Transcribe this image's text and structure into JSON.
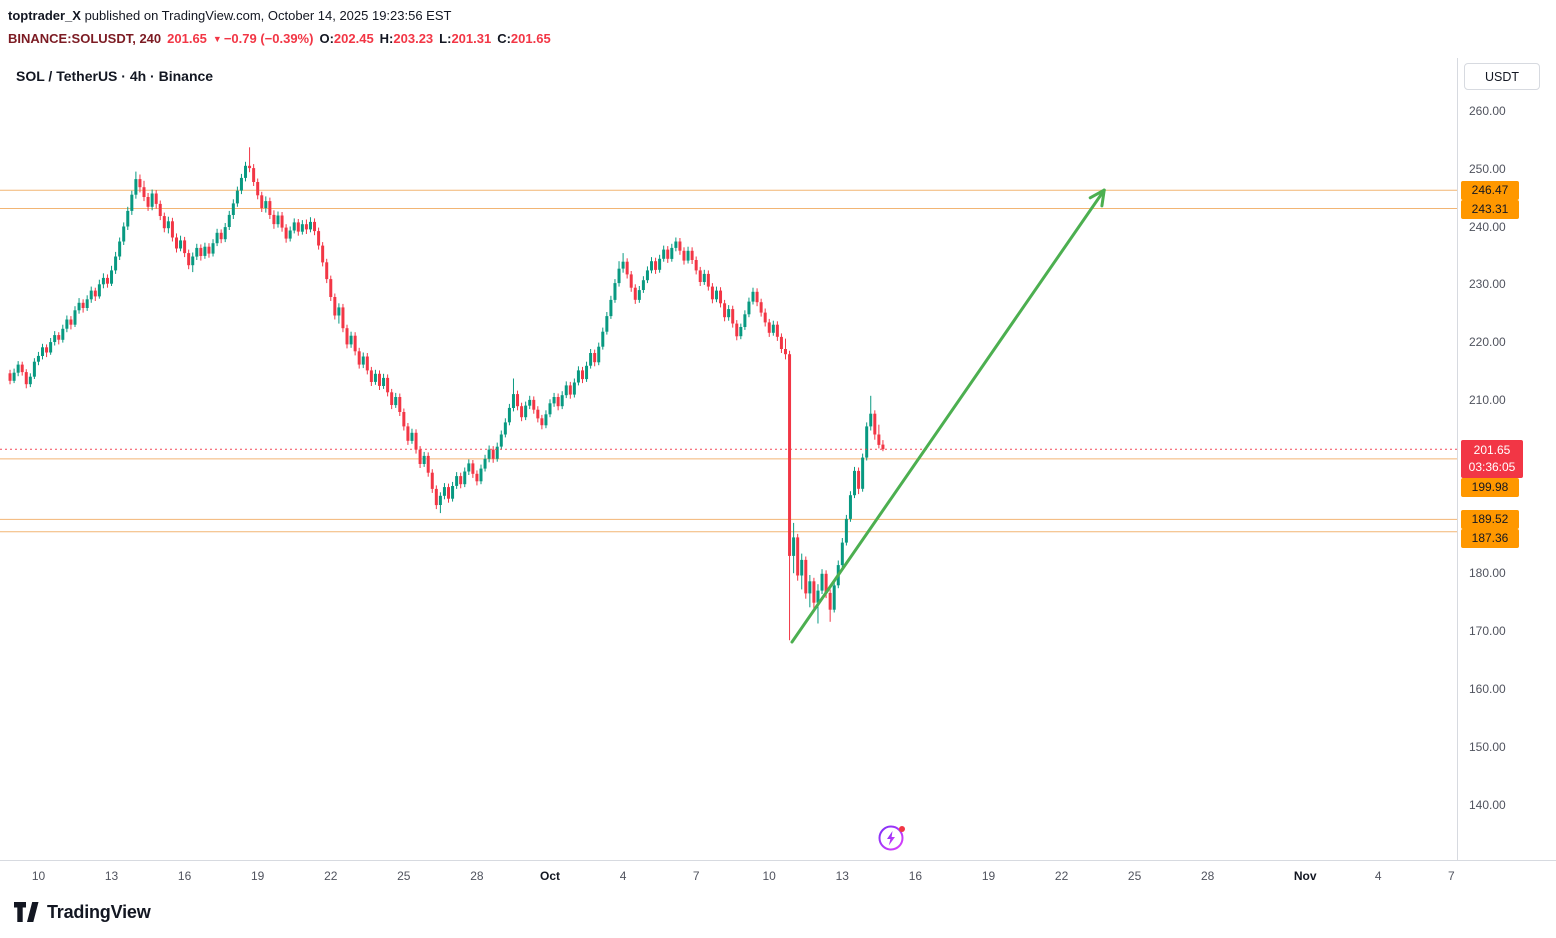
{
  "meta": {
    "attribution": {
      "author": "toptrader_X",
      "rest": " published on TradingView.com, October 14, 2025 19:23:56 EST"
    },
    "symbol_line": {
      "symbol": "BINANCE:SOLUSDT, 240",
      "last": "201.65",
      "down_arrow": "▼",
      "change": "−0.79 (−0.39%)",
      "o_label": "O:",
      "o_value": "202.45",
      "h_label": "H:",
      "h_value": "203.23",
      "l_label": "L:",
      "l_value": "201.31",
      "c_label": "C:",
      "c_value": "201.65"
    }
  },
  "chart": {
    "title": "SOL / TetherUS · 4h · Binance",
    "currency_button": "USDT",
    "watermark_text": "TradingView",
    "colors": {
      "up": "#089981",
      "down": "#f23645",
      "level_line": "#f0a95c",
      "level_badge_bg": "#ff9800",
      "level_badge_fg": "#131722",
      "price_badge_bg": "#f23645",
      "price_badge_fg": "#ffffff",
      "arrow": "#4caf50",
      "symbol_text": "#7c1b23",
      "negative_text": "#f23645"
    }
  },
  "chart_data": {
    "type": "candlestick",
    "symbol": "SOL/USDT",
    "exchange": "Binance",
    "interval": "4h",
    "ohlc_current": {
      "open": 202.45,
      "high": 203.23,
      "low": 201.31,
      "close": 201.65,
      "change": -0.79,
      "change_pct": -0.39
    },
    "price_axis": {
      "ticks": [
        260,
        250,
        240,
        230,
        220,
        210,
        180,
        170,
        160,
        150,
        140
      ],
      "visible_range": [
        130.6,
        269.4
      ],
      "currency": "USDT"
    },
    "time_axis": {
      "labels": [
        {
          "text": "10",
          "slot": 7
        },
        {
          "text": "13",
          "slot": 25
        },
        {
          "text": "16",
          "slot": 43
        },
        {
          "text": "19",
          "slot": 61
        },
        {
          "text": "22",
          "slot": 79
        },
        {
          "text": "25",
          "slot": 97
        },
        {
          "text": "28",
          "slot": 115
        },
        {
          "text": "Oct",
          "slot": 133,
          "month": true
        },
        {
          "text": "4",
          "slot": 151
        },
        {
          "text": "7",
          "slot": 169
        },
        {
          "text": "10",
          "slot": 187
        },
        {
          "text": "13",
          "slot": 205
        },
        {
          "text": "16",
          "slot": 223
        },
        {
          "text": "19",
          "slot": 241
        },
        {
          "text": "22",
          "slot": 259
        },
        {
          "text": "25",
          "slot": 277
        },
        {
          "text": "28",
          "slot": 295
        },
        {
          "text": "Nov",
          "slot": 319,
          "month": true
        },
        {
          "text": "4",
          "slot": 337
        },
        {
          "text": "7",
          "slot": 355
        }
      ]
    },
    "levels": [
      {
        "price": 246.47
      },
      {
        "price": 243.31
      },
      {
        "price": 199.98
      },
      {
        "price": 189.52
      },
      {
        "price": 187.36
      }
    ],
    "current_price": {
      "value": 201.65,
      "countdown": "03:36:05"
    },
    "arrow_drawing": {
      "from": {
        "slot": 192.6,
        "price": 168.3
      },
      "to": {
        "slot": 269.5,
        "price": 246.5
      },
      "color": "#4caf50"
    },
    "candles": [
      [
        214.8,
        215.4,
        212.9,
        213.5
      ],
      [
        213.5,
        215.6,
        213.1,
        214.9
      ],
      [
        214.9,
        216.9,
        214.3,
        216.3
      ],
      [
        216.3,
        216.8,
        214.4,
        215.0
      ],
      [
        215.0,
        215.5,
        212.2,
        212.9
      ],
      [
        212.9,
        214.8,
        212.4,
        214.2
      ],
      [
        214.2,
        217.4,
        213.8,
        216.8
      ],
      [
        216.8,
        218.5,
        216.2,
        217.8
      ],
      [
        217.8,
        219.9,
        217.2,
        219.3
      ],
      [
        219.3,
        219.8,
        217.6,
        218.4
      ],
      [
        218.4,
        220.9,
        218.0,
        220.2
      ],
      [
        220.2,
        222.1,
        219.6,
        221.4
      ],
      [
        221.4,
        221.9,
        219.8,
        220.6
      ],
      [
        220.6,
        223.2,
        220.1,
        222.5
      ],
      [
        222.5,
        224.8,
        221.9,
        224.1
      ],
      [
        224.1,
        224.7,
        222.4,
        223.2
      ],
      [
        223.2,
        226.4,
        222.8,
        225.7
      ],
      [
        225.7,
        227.8,
        225.1,
        227.0
      ],
      [
        227.0,
        227.6,
        225.3,
        226.1
      ],
      [
        226.1,
        228.3,
        225.6,
        227.6
      ],
      [
        227.6,
        229.8,
        227.0,
        229.1
      ],
      [
        229.1,
        229.6,
        227.3,
        228.1
      ],
      [
        228.1,
        231.0,
        227.7,
        230.2
      ],
      [
        230.2,
        232.1,
        229.5,
        231.3
      ],
      [
        231.3,
        231.9,
        229.6,
        230.3
      ],
      [
        230.3,
        233.4,
        229.9,
        232.6
      ],
      [
        232.6,
        235.8,
        232.0,
        235.0
      ],
      [
        235.0,
        238.3,
        234.4,
        237.6
      ],
      [
        237.6,
        240.9,
        237.0,
        240.2
      ],
      [
        240.2,
        243.6,
        239.6,
        242.9
      ],
      [
        242.9,
        246.4,
        242.2,
        245.7
      ],
      [
        245.7,
        249.7,
        245.0,
        248.4
      ],
      [
        248.4,
        249.2,
        246.1,
        247.0
      ],
      [
        247.0,
        248.1,
        244.6,
        245.3
      ],
      [
        245.3,
        246.0,
        242.9,
        243.6
      ],
      [
        243.6,
        246.6,
        243.0,
        245.9
      ],
      [
        245.9,
        246.5,
        243.3,
        244.1
      ],
      [
        244.1,
        244.7,
        241.3,
        242.0
      ],
      [
        242.0,
        242.6,
        239.2,
        239.9
      ],
      [
        239.9,
        241.9,
        239.0,
        241.1
      ],
      [
        241.1,
        241.7,
        237.6,
        238.3
      ],
      [
        238.3,
        239.0,
        235.7,
        236.4
      ],
      [
        236.4,
        238.6,
        235.9,
        237.8
      ],
      [
        237.8,
        238.4,
        234.9,
        235.6
      ],
      [
        235.6,
        236.2,
        232.8,
        233.5
      ],
      [
        233.5,
        235.7,
        232.3,
        235.0
      ],
      [
        235.0,
        237.2,
        234.4,
        236.5
      ],
      [
        236.5,
        237.1,
        234.3,
        235.1
      ],
      [
        235.1,
        237.4,
        234.6,
        236.7
      ],
      [
        236.7,
        237.3,
        234.8,
        235.5
      ],
      [
        235.5,
        238.0,
        235.0,
        237.3
      ],
      [
        237.3,
        239.8,
        236.8,
        239.1
      ],
      [
        239.1,
        239.7,
        237.3,
        238.0
      ],
      [
        238.0,
        240.8,
        237.5,
        240.1
      ],
      [
        240.1,
        242.9,
        239.6,
        242.2
      ],
      [
        242.2,
        244.9,
        241.5,
        244.2
      ],
      [
        244.2,
        247.1,
        243.6,
        246.4
      ],
      [
        246.4,
        249.3,
        245.8,
        248.6
      ],
      [
        248.6,
        251.4,
        248.0,
        250.7
      ],
      [
        250.7,
        253.9,
        249.6,
        250.3
      ],
      [
        250.3,
        251.0,
        247.2,
        247.9
      ],
      [
        247.9,
        248.5,
        244.9,
        245.6
      ],
      [
        245.6,
        246.2,
        242.7,
        243.4
      ],
      [
        243.4,
        245.4,
        242.6,
        244.6
      ],
      [
        244.6,
        245.2,
        241.5,
        242.2
      ],
      [
        242.2,
        243.0,
        239.8,
        240.6
      ],
      [
        240.6,
        242.8,
        240.0,
        242.1
      ],
      [
        242.1,
        242.7,
        239.3,
        240.0
      ],
      [
        240.0,
        240.6,
        237.4,
        238.1
      ],
      [
        238.1,
        240.2,
        237.6,
        239.5
      ],
      [
        239.5,
        241.6,
        239.0,
        240.9
      ],
      [
        240.9,
        241.5,
        238.6,
        239.3
      ],
      [
        239.3,
        241.3,
        238.8,
        240.6
      ],
      [
        240.6,
        241.4,
        238.9,
        239.7
      ],
      [
        239.7,
        241.8,
        239.2,
        241.0
      ],
      [
        241.0,
        241.6,
        238.7,
        239.4
      ],
      [
        239.4,
        240.0,
        236.2,
        236.9
      ],
      [
        236.9,
        237.5,
        233.3,
        234.0
      ],
      [
        234.0,
        234.6,
        230.4,
        231.1
      ],
      [
        231.1,
        231.7,
        227.3,
        228.0
      ],
      [
        228.0,
        228.6,
        224.1,
        224.8
      ],
      [
        224.8,
        226.9,
        223.4,
        226.2
      ],
      [
        226.2,
        226.8,
        221.9,
        222.6
      ],
      [
        222.6,
        223.2,
        219.1,
        219.8
      ],
      [
        219.8,
        222.0,
        219.2,
        221.3
      ],
      [
        221.3,
        221.9,
        217.9,
        218.6
      ],
      [
        218.6,
        219.2,
        215.6,
        216.3
      ],
      [
        216.3,
        218.4,
        215.7,
        217.7
      ],
      [
        217.7,
        218.3,
        214.6,
        215.3
      ],
      [
        215.3,
        215.9,
        212.6,
        213.3
      ],
      [
        213.3,
        215.4,
        212.8,
        214.7
      ],
      [
        214.7,
        215.3,
        211.9,
        212.6
      ],
      [
        212.6,
        214.7,
        212.1,
        214.0
      ],
      [
        214.0,
        214.6,
        210.8,
        211.5
      ],
      [
        211.5,
        212.1,
        208.6,
        209.3
      ],
      [
        209.3,
        211.4,
        208.8,
        210.7
      ],
      [
        210.7,
        211.3,
        207.4,
        208.1
      ],
      [
        208.1,
        208.7,
        204.9,
        205.6
      ],
      [
        205.6,
        206.2,
        202.4,
        203.1
      ],
      [
        203.1,
        205.2,
        202.6,
        204.5
      ],
      [
        204.5,
        205.1,
        200.9,
        201.6
      ],
      [
        201.6,
        202.2,
        198.4,
        199.1
      ],
      [
        199.1,
        201.2,
        198.6,
        200.5
      ],
      [
        200.5,
        201.1,
        196.9,
        197.6
      ],
      [
        197.6,
        198.2,
        194.1,
        194.8
      ],
      [
        194.8,
        195.4,
        191.3,
        192.0
      ],
      [
        192.0,
        194.2,
        190.6,
        193.6
      ],
      [
        193.6,
        195.8,
        193.0,
        195.1
      ],
      [
        195.1,
        195.7,
        192.4,
        193.1
      ],
      [
        193.1,
        196.0,
        192.6,
        195.3
      ],
      [
        195.3,
        197.7,
        194.8,
        197.0
      ],
      [
        197.0,
        197.6,
        194.9,
        195.6
      ],
      [
        195.6,
        198.5,
        195.1,
        197.8
      ],
      [
        197.8,
        199.9,
        197.2,
        199.2
      ],
      [
        199.2,
        199.8,
        196.7,
        197.4
      ],
      [
        197.4,
        198.0,
        195.4,
        196.1
      ],
      [
        196.1,
        199.0,
        195.6,
        198.3
      ],
      [
        198.3,
        200.7,
        197.8,
        200.0
      ],
      [
        200.0,
        202.3,
        199.4,
        201.6
      ],
      [
        201.6,
        202.2,
        199.3,
        200.0
      ],
      [
        200.0,
        202.8,
        199.5,
        202.1
      ],
      [
        202.1,
        204.9,
        201.6,
        204.2
      ],
      [
        204.2,
        207.0,
        203.7,
        206.3
      ],
      [
        206.3,
        209.5,
        205.8,
        208.8
      ],
      [
        208.8,
        213.9,
        208.2,
        211.2
      ],
      [
        211.2,
        211.8,
        208.4,
        209.1
      ],
      [
        209.1,
        209.7,
        206.5,
        207.2
      ],
      [
        207.2,
        209.9,
        206.7,
        209.2
      ],
      [
        209.2,
        210.9,
        208.6,
        210.2
      ],
      [
        210.2,
        210.8,
        207.8,
        208.5
      ],
      [
        208.5,
        209.1,
        206.3,
        207.0
      ],
      [
        207.0,
        207.6,
        205.1,
        205.8
      ],
      [
        205.8,
        208.4,
        205.3,
        207.7
      ],
      [
        207.7,
        210.3,
        207.2,
        209.6
      ],
      [
        209.6,
        211.4,
        209.0,
        210.7
      ],
      [
        210.7,
        211.3,
        208.4,
        209.1
      ],
      [
        209.1,
        211.7,
        208.6,
        211.0
      ],
      [
        211.0,
        213.4,
        210.5,
        212.7
      ],
      [
        212.7,
        213.3,
        210.4,
        211.1
      ],
      [
        211.1,
        213.9,
        210.6,
        213.2
      ],
      [
        213.2,
        216.0,
        212.7,
        215.3
      ],
      [
        215.3,
        215.9,
        213.1,
        213.8
      ],
      [
        213.8,
        216.8,
        213.3,
        216.1
      ],
      [
        216.1,
        219.0,
        215.6,
        218.3
      ],
      [
        218.3,
        218.9,
        216.0,
        216.7
      ],
      [
        216.7,
        220.1,
        216.2,
        219.4
      ],
      [
        219.4,
        222.7,
        218.9,
        222.0
      ],
      [
        222.0,
        225.4,
        221.5,
        224.7
      ],
      [
        224.7,
        228.2,
        224.2,
        227.5
      ],
      [
        227.5,
        231.1,
        227.0,
        230.4
      ],
      [
        230.4,
        234.2,
        229.8,
        232.9
      ],
      [
        232.9,
        235.6,
        232.2,
        234.1
      ],
      [
        234.1,
        234.7,
        231.2,
        231.9
      ],
      [
        231.9,
        232.5,
        228.9,
        229.6
      ],
      [
        229.6,
        230.2,
        226.8,
        227.5
      ],
      [
        227.5,
        229.9,
        227.0,
        229.2
      ],
      [
        229.2,
        231.6,
        228.7,
        230.9
      ],
      [
        230.9,
        233.3,
        230.4,
        232.6
      ],
      [
        232.6,
        234.9,
        232.1,
        234.2
      ],
      [
        234.2,
        234.8,
        232.0,
        232.7
      ],
      [
        232.7,
        235.3,
        232.2,
        234.6
      ],
      [
        234.6,
        236.9,
        234.1,
        236.2
      ],
      [
        236.2,
        236.8,
        233.9,
        234.6
      ],
      [
        234.6,
        237.2,
        234.1,
        236.5
      ],
      [
        236.5,
        238.3,
        235.9,
        237.6
      ],
      [
        237.6,
        238.2,
        235.3,
        236.0
      ],
      [
        236.0,
        236.6,
        233.6,
        234.3
      ],
      [
        234.3,
        236.7,
        233.8,
        236.0
      ],
      [
        236.0,
        236.6,
        233.7,
        234.4
      ],
      [
        234.4,
        235.0,
        231.9,
        232.6
      ],
      [
        232.6,
        233.2,
        229.9,
        230.6
      ],
      [
        230.6,
        232.7,
        230.1,
        232.0
      ],
      [
        232.0,
        232.6,
        229.1,
        229.8
      ],
      [
        229.8,
        230.4,
        226.9,
        227.6
      ],
      [
        227.6,
        229.8,
        227.1,
        229.1
      ],
      [
        229.1,
        229.7,
        226.2,
        226.9
      ],
      [
        226.9,
        227.5,
        223.8,
        224.5
      ],
      [
        224.5,
        226.6,
        223.9,
        225.9
      ],
      [
        225.9,
        226.5,
        222.7,
        223.4
      ],
      [
        223.4,
        224.0,
        220.5,
        221.2
      ],
      [
        221.2,
        223.4,
        220.7,
        222.8
      ],
      [
        222.8,
        225.7,
        222.3,
        225.0
      ],
      [
        225.0,
        227.9,
        224.5,
        227.2
      ],
      [
        227.2,
        229.6,
        226.7,
        228.9
      ],
      [
        228.9,
        229.5,
        226.4,
        227.1
      ],
      [
        227.1,
        227.7,
        224.6,
        225.3
      ],
      [
        225.3,
        226.0,
        222.9,
        223.6
      ],
      [
        223.6,
        224.2,
        221.1,
        221.8
      ],
      [
        221.8,
        223.9,
        221.3,
        223.2
      ],
      [
        223.2,
        223.8,
        220.4,
        221.1
      ],
      [
        221.1,
        221.7,
        218.3,
        219.0
      ],
      [
        219.0,
        220.8,
        217.2,
        218.1
      ],
      [
        218.1,
        218.7,
        168.6,
        183.2
      ],
      [
        183.2,
        188.9,
        180.2,
        186.4
      ],
      [
        186.4,
        187.0,
        178.9,
        179.8
      ],
      [
        179.8,
        183.6,
        177.4,
        182.5
      ],
      [
        182.5,
        183.1,
        175.8,
        176.7
      ],
      [
        176.7,
        179.9,
        174.3,
        178.8
      ],
      [
        178.8,
        179.4,
        173.6,
        175.1
      ],
      [
        175.1,
        178.3,
        171.5,
        177.2
      ],
      [
        177.2,
        180.9,
        176.6,
        180.1
      ],
      [
        180.1,
        180.7,
        175.9,
        176.8
      ],
      [
        176.8,
        177.4,
        171.8,
        173.9
      ],
      [
        173.9,
        178.9,
        173.4,
        178.1
      ],
      [
        178.1,
        182.4,
        177.6,
        181.6
      ],
      [
        181.6,
        186.3,
        181.1,
        185.5
      ],
      [
        185.5,
        190.3,
        185.0,
        189.6
      ],
      [
        189.6,
        194.4,
        189.1,
        193.7
      ],
      [
        193.7,
        198.6,
        193.2,
        197.9
      ],
      [
        197.9,
        198.5,
        193.9,
        194.8
      ],
      [
        194.8,
        200.9,
        194.3,
        200.2
      ],
      [
        200.2,
        206.3,
        199.7,
        205.6
      ],
      [
        205.6,
        210.9,
        204.9,
        207.8
      ],
      [
        207.8,
        208.4,
        203.3,
        204.2
      ],
      [
        204.2,
        205.9,
        201.8,
        202.4
      ],
      [
        202.45,
        203.23,
        201.31,
        201.65
      ]
    ]
  }
}
